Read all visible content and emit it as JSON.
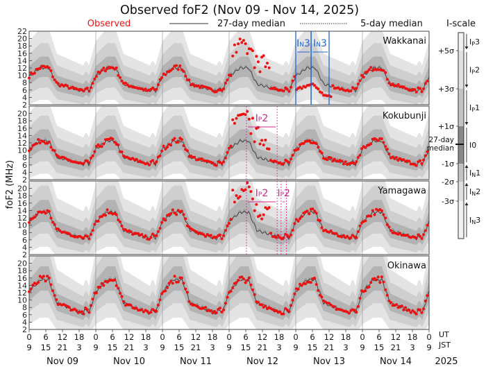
{
  "chart_data": {
    "type": "scatter",
    "title": "Observed foF2 (Nov 09 - Nov 14, 2025)",
    "legend": {
      "observed": "Observed",
      "median27": "27-day median",
      "median5": "5-day median"
    },
    "ylabel": "foF2 (MHz)",
    "colors": {
      "observed": "#ee1111",
      "annotation_blue": "#2266cc",
      "annotation_magenta": "#d0268c"
    },
    "xlim": [
      0,
      6
    ],
    "ut_ticks": [
      "9",
      "6",
      "15",
      "12",
      "21",
      "18",
      "3",
      "0",
      "9",
      "6",
      "15",
      "12",
      "21",
      "18",
      "3",
      "0",
      "9",
      "6",
      "15",
      "12",
      "21",
      "18",
      "3",
      "0",
      "9",
      "6",
      "15",
      "12",
      "21",
      "18",
      "3",
      "0",
      "9",
      "6",
      "15",
      "12",
      "21",
      "18",
      "3",
      "0",
      "9",
      "6",
      "15",
      "12",
      "21",
      "18",
      "3",
      "0",
      "9"
    ],
    "ut_tick_labels": [
      "0",
      "6",
      "12",
      "18",
      "0",
      "6",
      "12",
      "18",
      "0",
      "6",
      "12",
      "18",
      "0",
      "6",
      "12",
      "18",
      "0",
      "6",
      "12",
      "18",
      "0",
      "6",
      "12",
      "18",
      "0"
    ],
    "jst_tick_labels": [
      "9",
      "15",
      "21",
      "3",
      "9",
      "15",
      "21",
      "3",
      "9",
      "15",
      "21",
      "3",
      "9",
      "15",
      "21",
      "3",
      "9",
      "15",
      "21",
      "3",
      "9",
      "15",
      "21",
      "3",
      "9"
    ],
    "ut_label": "UT",
    "jst_label": "JST",
    "day_labels": [
      "Nov 09",
      "Nov 10",
      "Nov 11",
      "Nov 12",
      "Nov 13",
      "Nov 14"
    ],
    "year": "2025",
    "panels": [
      {
        "station": "Wakkanai",
        "ylim": [
          2,
          22
        ],
        "yticks": [
          "2",
          "4",
          "6",
          "8",
          "10",
          "12",
          "14",
          "16",
          "18",
          "20",
          "22"
        ],
        "day_peak": 12,
        "night_min": 4,
        "annotations": [
          {
            "label": "IN3",
            "main": "I",
            "sub": "N",
            "num": "3",
            "start": 4.0,
            "end": 4.23,
            "color": "blue"
          },
          {
            "label": "IN3",
            "main": "I",
            "sub": "N",
            "num": "3",
            "start": 4.23,
            "end": 4.5,
            "color": "blue"
          }
        ]
      },
      {
        "station": "Kokubunji",
        "ylim": [
          2,
          22
        ],
        "yticks": [
          "2",
          "4",
          "6",
          "8",
          "10",
          "12",
          "14",
          "16",
          "18",
          "20"
        ],
        "day_peak": 12.5,
        "night_min": 4.5,
        "annotations": [
          {
            "label": "IP2",
            "main": "I",
            "sub": "P",
            "num": "2",
            "start": 3.26,
            "end": 3.72,
            "color": "magenta"
          }
        ]
      },
      {
        "station": "Yamagawa",
        "ylim": [
          2,
          22
        ],
        "yticks": [
          "2",
          "4",
          "6",
          "8",
          "10",
          "12",
          "14",
          "16",
          "18",
          "20"
        ],
        "day_peak": 13.5,
        "night_min": 4.5,
        "annotations": [
          {
            "label": "IP2",
            "main": "I",
            "sub": "P",
            "num": "2",
            "start": 3.26,
            "end": 3.72,
            "color": "magenta"
          },
          {
            "label": "IP2",
            "main": "I",
            "sub": "P",
            "num": "2",
            "start": 3.78,
            "end": 3.86,
            "color": "magenta"
          }
        ]
      },
      {
        "station": "Okinawa",
        "ylim": [
          2,
          22
        ],
        "yticks": [
          "2",
          "4",
          "6",
          "8",
          "10",
          "12",
          "14",
          "16",
          "18",
          "20"
        ],
        "day_peak": 15.5,
        "night_min": 4,
        "annotations": []
      }
    ],
    "iscale": {
      "title": "I-scale",
      "sigma_labels": [
        "+5σ",
        "+3σ",
        "+1σ",
        "-1σ",
        "-2σ",
        "-3σ"
      ],
      "median_label_1": "27-day",
      "median_label_2": "median",
      "categories": [
        {
          "main": "I",
          "sub": "P",
          "num": "3"
        },
        {
          "main": "I",
          "sub": "P",
          "num": "2"
        },
        {
          "main": "I",
          "sub": "P",
          "num": "1"
        },
        {
          "main": "I",
          "sub": "",
          "num": "0"
        },
        {
          "main": "I",
          "sub": "N",
          "num": "1"
        },
        {
          "main": "I",
          "sub": "N",
          "num": "2"
        },
        {
          "main": "I",
          "sub": "N",
          "num": "3"
        }
      ]
    }
  }
}
